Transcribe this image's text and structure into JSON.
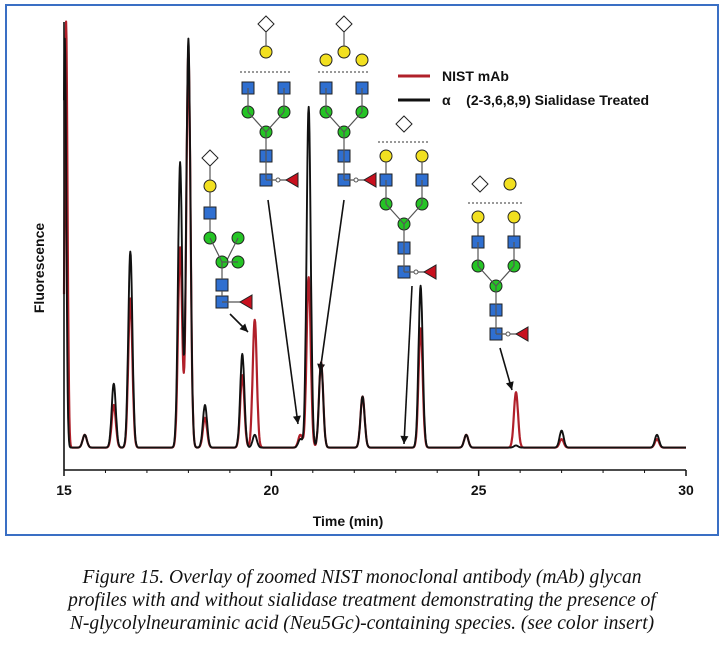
{
  "chart_data": {
    "type": "line",
    "xlabel": "Time (min)",
    "ylabel": "Fluorescence",
    "xlim": [
      15,
      30
    ],
    "ylim": [
      0,
      100
    ],
    "x_ticks": [
      "15",
      "20",
      "25",
      "30"
    ],
    "legend_position": "top-right",
    "series": [
      {
        "name": "NIST mAb",
        "color": "#b0202a",
        "peaks": [
          {
            "x": 15.05,
            "y": 100
          },
          {
            "x": 15.5,
            "y": 3
          },
          {
            "x": 16.2,
            "y": 10
          },
          {
            "x": 16.6,
            "y": 35
          },
          {
            "x": 17.8,
            "y": 47
          },
          {
            "x": 18.0,
            "y": 93
          },
          {
            "x": 18.4,
            "y": 7
          },
          {
            "x": 19.3,
            "y": 17
          },
          {
            "x": 19.6,
            "y": 30
          },
          {
            "x": 20.7,
            "y": 3
          },
          {
            "x": 20.9,
            "y": 40
          },
          {
            "x": 21.2,
            "y": 20
          },
          {
            "x": 22.2,
            "y": 12
          },
          {
            "x": 23.6,
            "y": 28
          },
          {
            "x": 24.7,
            "y": 3
          },
          {
            "x": 25.9,
            "y": 13
          },
          {
            "x": 27.0,
            "y": 2
          },
          {
            "x": 29.3,
            "y": 2
          }
        ]
      },
      {
        "name": "α    (2-3,6,8,9) Sialidase Treated",
        "color": "#111111",
        "peaks": [
          {
            "x": 15.02,
            "y": 96
          },
          {
            "x": 15.5,
            "y": 3
          },
          {
            "x": 16.2,
            "y": 15
          },
          {
            "x": 16.6,
            "y": 46
          },
          {
            "x": 17.8,
            "y": 67
          },
          {
            "x": 18.0,
            "y": 96
          },
          {
            "x": 18.4,
            "y": 10
          },
          {
            "x": 19.3,
            "y": 22
          },
          {
            "x": 19.6,
            "y": 3
          },
          {
            "x": 20.7,
            "y": 2
          },
          {
            "x": 20.9,
            "y": 80
          },
          {
            "x": 21.2,
            "y": 20
          },
          {
            "x": 22.2,
            "y": 12
          },
          {
            "x": 23.6,
            "y": 38
          },
          {
            "x": 24.7,
            "y": 3
          },
          {
            "x": 25.9,
            "y": 0.5
          },
          {
            "x": 27.0,
            "y": 4
          },
          {
            "x": 29.3,
            "y": 3
          }
        ]
      }
    ]
  },
  "caption": {
    "lines": [
      "Figure 15.  Overlay of zoomed NIST monoclonal antibody (mAb) glycan",
      "profiles with and without sialidase treatment demonstrating the presence of",
      "N-glycolylneuraminic acid (Neu5Gc)-containing species. (see color insert)"
    ]
  },
  "colors": {
    "frame_border": "#3a6fc4",
    "glcnac": "#2f6fd0",
    "mannose": "#25c425",
    "galactose": "#f2e020",
    "fucose": "#c8101e",
    "neu5gc": "#ffffff"
  }
}
